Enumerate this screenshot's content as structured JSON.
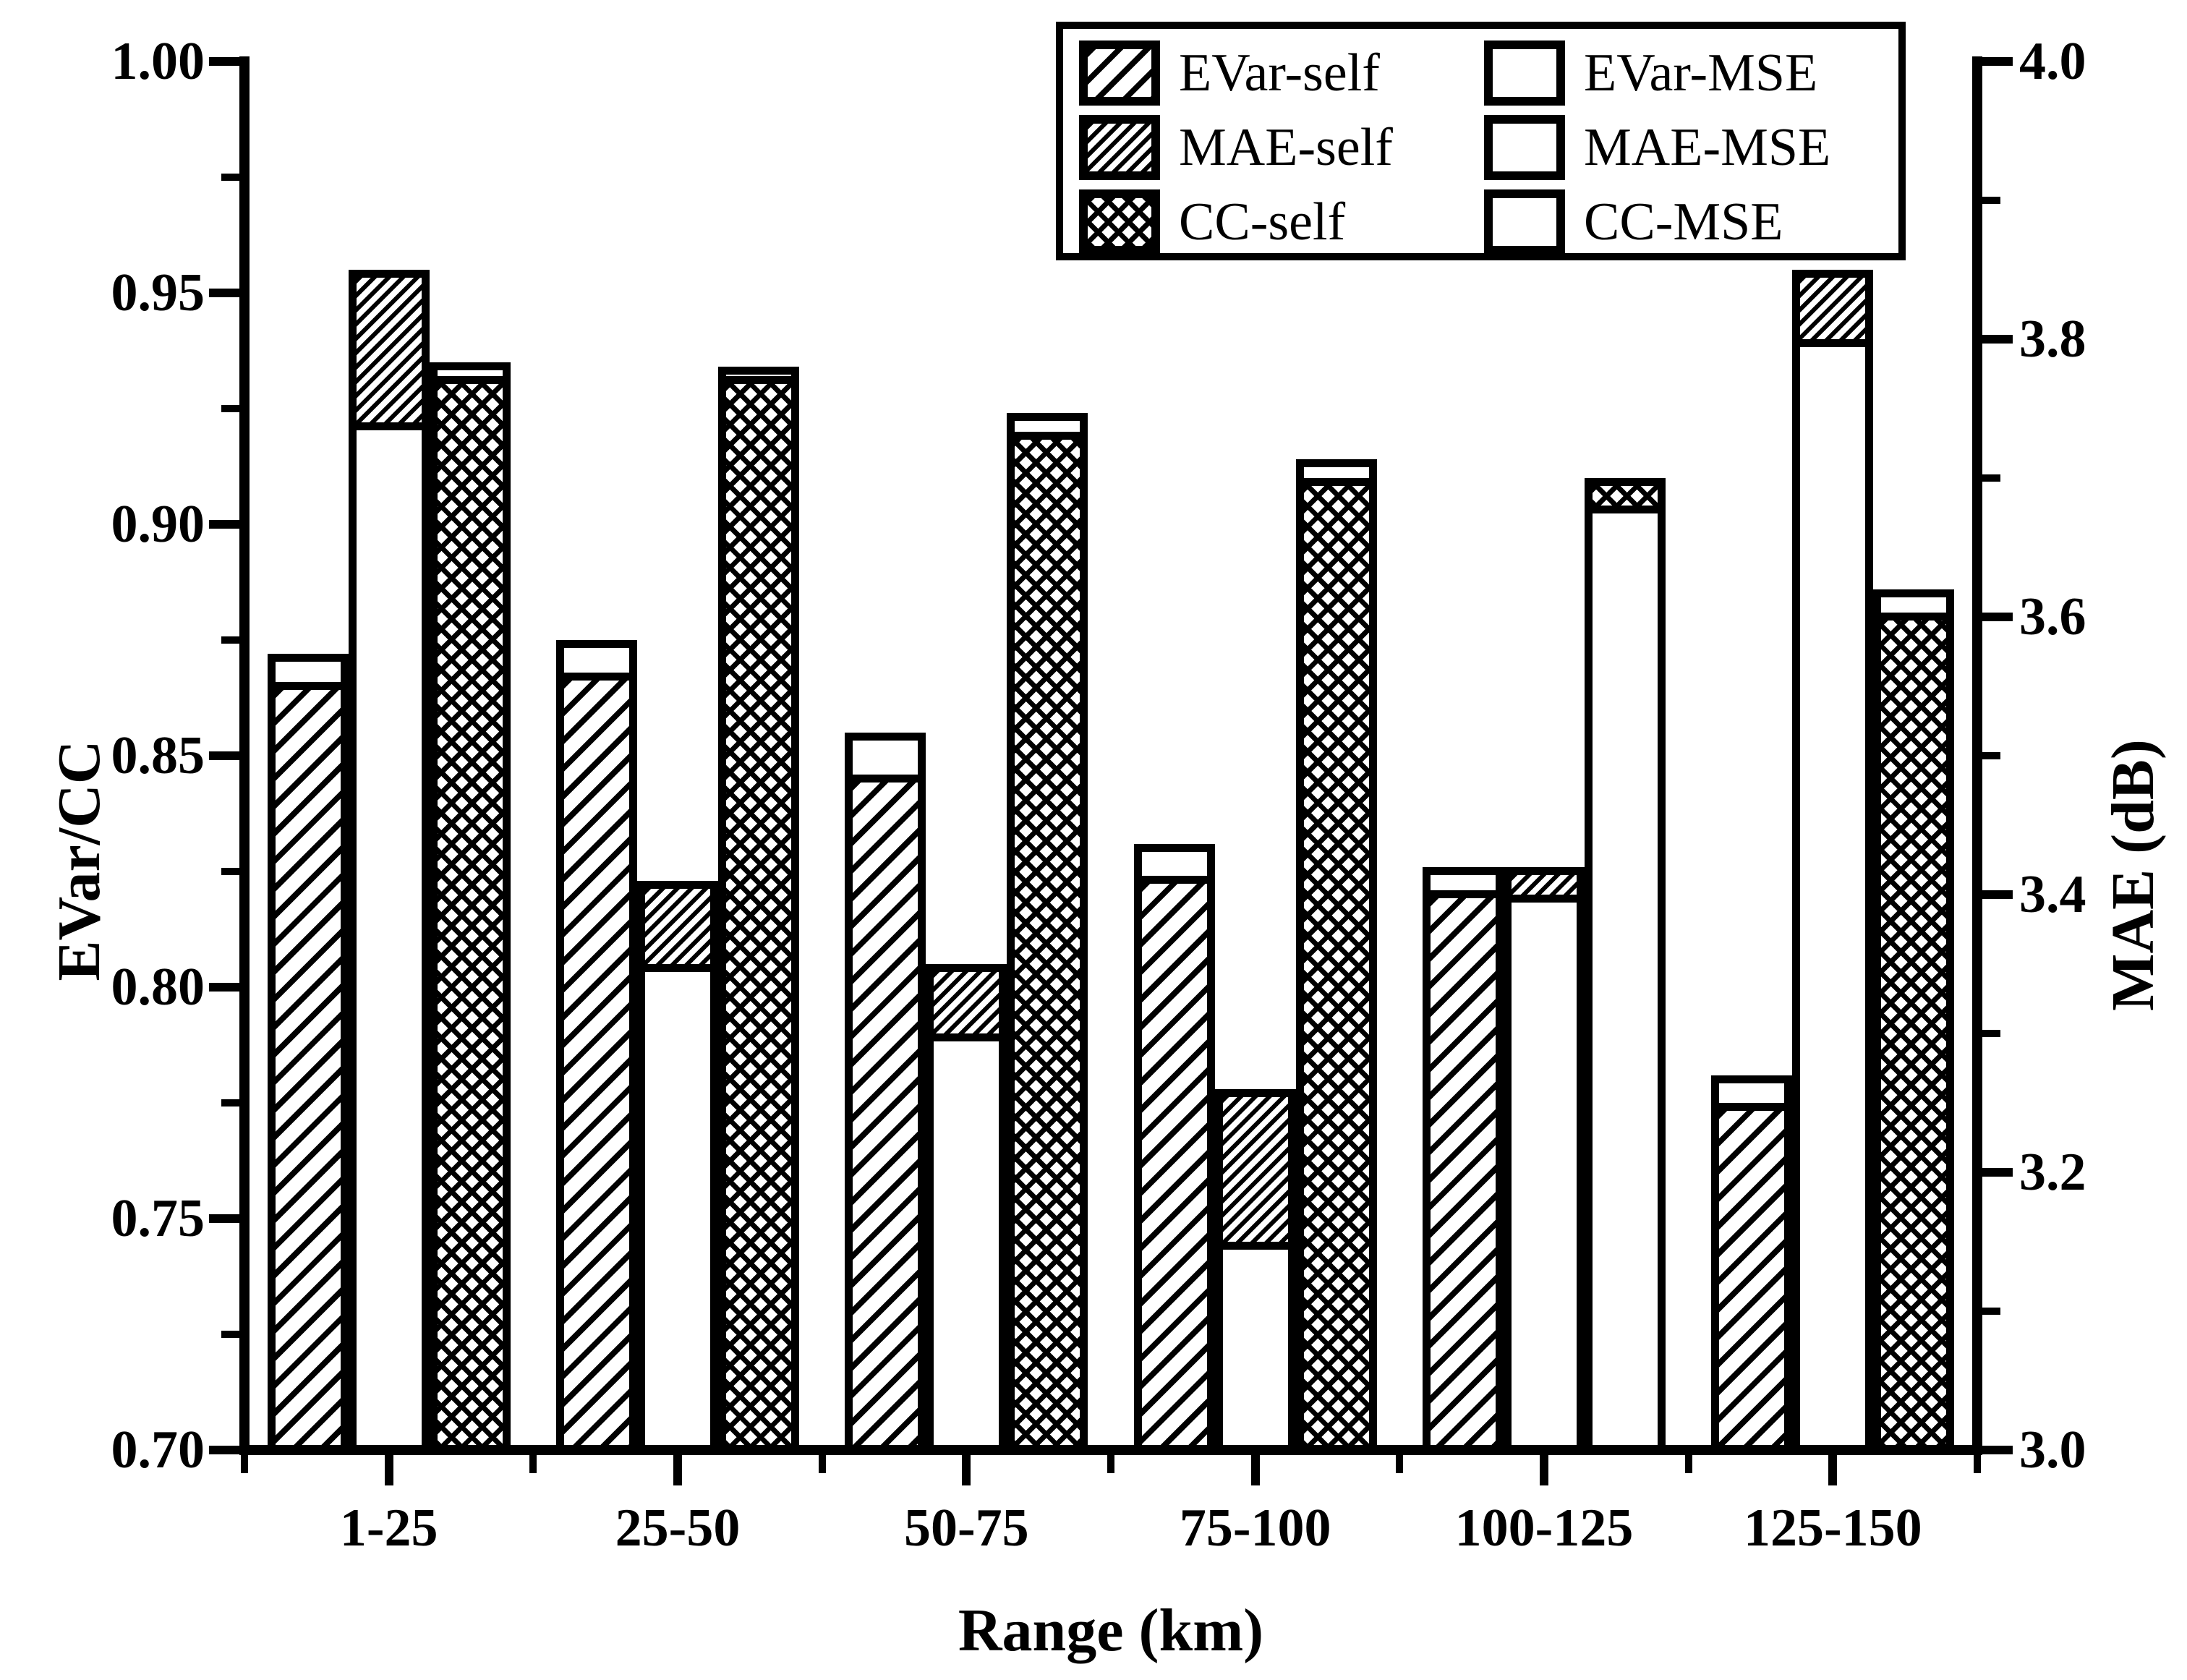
{
  "figure": {
    "background": "#ffffff",
    "ink": "#000000"
  },
  "legend": {
    "columns": [
      [
        {
          "label": "EVar-self",
          "pattern": "diagonal-sparse"
        },
        {
          "label": "MAE-self",
          "pattern": "diagonal-dense"
        },
        {
          "label": "CC-self",
          "pattern": "crosshatch"
        }
      ],
      [
        {
          "label": "EVar-MSE",
          "pattern": "plain"
        },
        {
          "label": "MAE-MSE",
          "pattern": "plain"
        },
        {
          "label": "CC-MSE",
          "pattern": "plain"
        }
      ]
    ]
  },
  "chart_data": {
    "type": "bar",
    "categories": [
      "1-25",
      "25-50",
      "50-75",
      "75-100",
      "100-125",
      "125-150"
    ],
    "xlabel": "Range (km)",
    "grid": false,
    "legend_position": "top-right",
    "left_axis": {
      "label": "EVar/CC",
      "min": 0.7,
      "max": 1.0,
      "major_tick_step": 0.05,
      "minor_tick_step": 0.025,
      "tick_labels": [
        "1.00",
        "0.95",
        "0.90",
        "0.85",
        "0.80",
        "0.75",
        "0.70"
      ]
    },
    "right_axis": {
      "label": "MAE (dB)",
      "min": 3.0,
      "max": 4.0,
      "major_tick_step": 0.2,
      "minor_tick_step": 0.1,
      "tick_labels": [
        "4.0",
        "3.8",
        "3.6",
        "3.4",
        "3.2",
        "3.0"
      ]
    },
    "series": [
      {
        "name": "EVar-self",
        "axis": "left",
        "pattern": "diagonal-sparse",
        "slot": 0,
        "values": [
          0.866,
          0.868,
          0.846,
          0.824,
          0.821,
          0.775
        ]
      },
      {
        "name": "EVar-MSE",
        "axis": "left",
        "pattern": "plain",
        "slot": 0,
        "values": [
          0.872,
          0.875,
          0.855,
          0.831,
          0.826,
          0.781
        ]
      },
      {
        "name": "MAE-self",
        "axis": "right",
        "pattern": "diagonal-dense",
        "slot": 1,
        "values": [
          3.85,
          3.41,
          3.35,
          3.26,
          3.42,
          3.85
        ]
      },
      {
        "name": "MAE-MSE",
        "axis": "right",
        "pattern": "plain",
        "slot": 1,
        "values": [
          3.74,
          3.35,
          3.3,
          3.15,
          3.4,
          3.8
        ]
      },
      {
        "name": "CC-self",
        "axis": "left",
        "pattern": "crosshatch",
        "slot": 2,
        "values": [
          0.932,
          0.932,
          0.92,
          0.91,
          0.91,
          0.881
        ]
      },
      {
        "name": "CC-MSE",
        "axis": "left",
        "pattern": "plain",
        "slot": 2,
        "values": [
          0.935,
          0.934,
          0.924,
          0.914,
          0.904,
          0.886
        ]
      }
    ]
  }
}
